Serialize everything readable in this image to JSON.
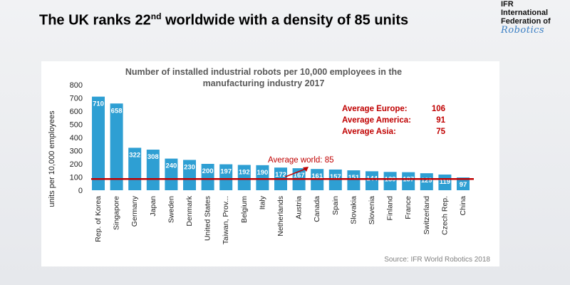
{
  "slide": {
    "title_pre": "The UK ranks 22",
    "title_sup": "nd",
    "title_post": " worldwide with a density of 85 units"
  },
  "logo": {
    "line1": "IFR",
    "line2": "International",
    "line3": "Federation of",
    "script": "Robotics"
  },
  "chart_data": {
    "type": "bar",
    "title": "Number of installed industrial robots per 10,000 employees in the manufacturing industry 2017",
    "title_lines": [
      "Number of installed industrial robots per 10,000 employees in the",
      "manufacturing industry 2017"
    ],
    "ylabel": "units per 10,000 employees",
    "ylim": [
      0,
      800
    ],
    "yticks": [
      0,
      100,
      200,
      300,
      400,
      500,
      600,
      700,
      800
    ],
    "categories": [
      "Rep. of Korea",
      "Singapore",
      "Germany",
      "Japan",
      "Sweden",
      "Denmark",
      "United States",
      "Taiwan, Prov...",
      "Belgium",
      "Italy",
      "Netherlands",
      "Austria",
      "Canada",
      "Spain",
      "Slovakia",
      "Slovenia",
      "Finland",
      "France",
      "Switzerland",
      "Czech Rep.",
      "China"
    ],
    "values": [
      710,
      658,
      322,
      308,
      240,
      230,
      200,
      197,
      192,
      190,
      172,
      167,
      161,
      157,
      151,
      144,
      139,
      137,
      129,
      119,
      97
    ],
    "average_world": {
      "label": "Average world: 85",
      "value": 85
    },
    "regional_averages": [
      {
        "label": "Average Europe:",
        "value": "106"
      },
      {
        "label": "Average America:",
        "value": "91"
      },
      {
        "label": "Average Asia:",
        "value": "75"
      }
    ],
    "source": "Source: IFR World Robotics 2018",
    "grid": false,
    "colors": {
      "bar": "#2e9fd3",
      "average_line": "#c00000",
      "label_text": "#ffffff"
    }
  }
}
